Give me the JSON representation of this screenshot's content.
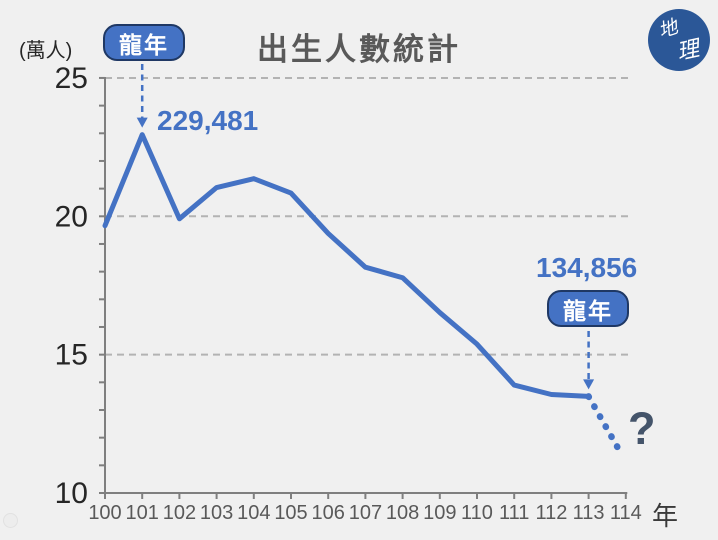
{
  "header": {
    "title": "出生人數統計"
  },
  "chart_data": {
    "type": "line",
    "title": "出生人數統計",
    "unit_label": "(萬人)",
    "xlabel": "年",
    "ylabel": "(萬人)",
    "x": [
      100,
      101,
      102,
      103,
      104,
      105,
      106,
      107,
      108,
      109,
      110,
      111,
      112,
      113
    ],
    "values": [
      19.66,
      22.95,
      19.91,
      21.04,
      21.36,
      20.84,
      19.38,
      18.16,
      17.78,
      16.52,
      15.38,
      13.9,
      13.56,
      13.49
    ],
    "xticks": [
      100,
      101,
      102,
      103,
      104,
      105,
      106,
      107,
      108,
      109,
      110,
      111,
      112,
      113,
      114
    ],
    "yticks": [
      10,
      15,
      20,
      25
    ],
    "gridlines": [
      15,
      20,
      25
    ],
    "grid": true,
    "legend": "none",
    "xlim": [
      100,
      114
    ],
    "ylim": [
      10,
      25
    ],
    "projection": {
      "x": [
        113,
        113.8
      ],
      "values": [
        13.49,
        11.6
      ],
      "style": "dotted"
    },
    "annotations": [
      {
        "year": 101,
        "badge": "龍年",
        "value_label": "229,481"
      },
      {
        "year": 113,
        "badge": "龍年",
        "value_label": "134,856"
      }
    ],
    "unknown_label": "?"
  },
  "logo": {
    "char_top": "地",
    "char_bottom": "理"
  },
  "colors": {
    "accent": "#4472C4",
    "badge_border": "#1F3864",
    "title_gray": "#595959",
    "axis_gray": "#7F7F7F",
    "grid_gray": "#B3B3B3",
    "tick_dark": "#262626",
    "x_tick_gray": "#595959",
    "question": "#44546A",
    "background": "#F0F0F0",
    "logo_blue": "#2B5797"
  }
}
